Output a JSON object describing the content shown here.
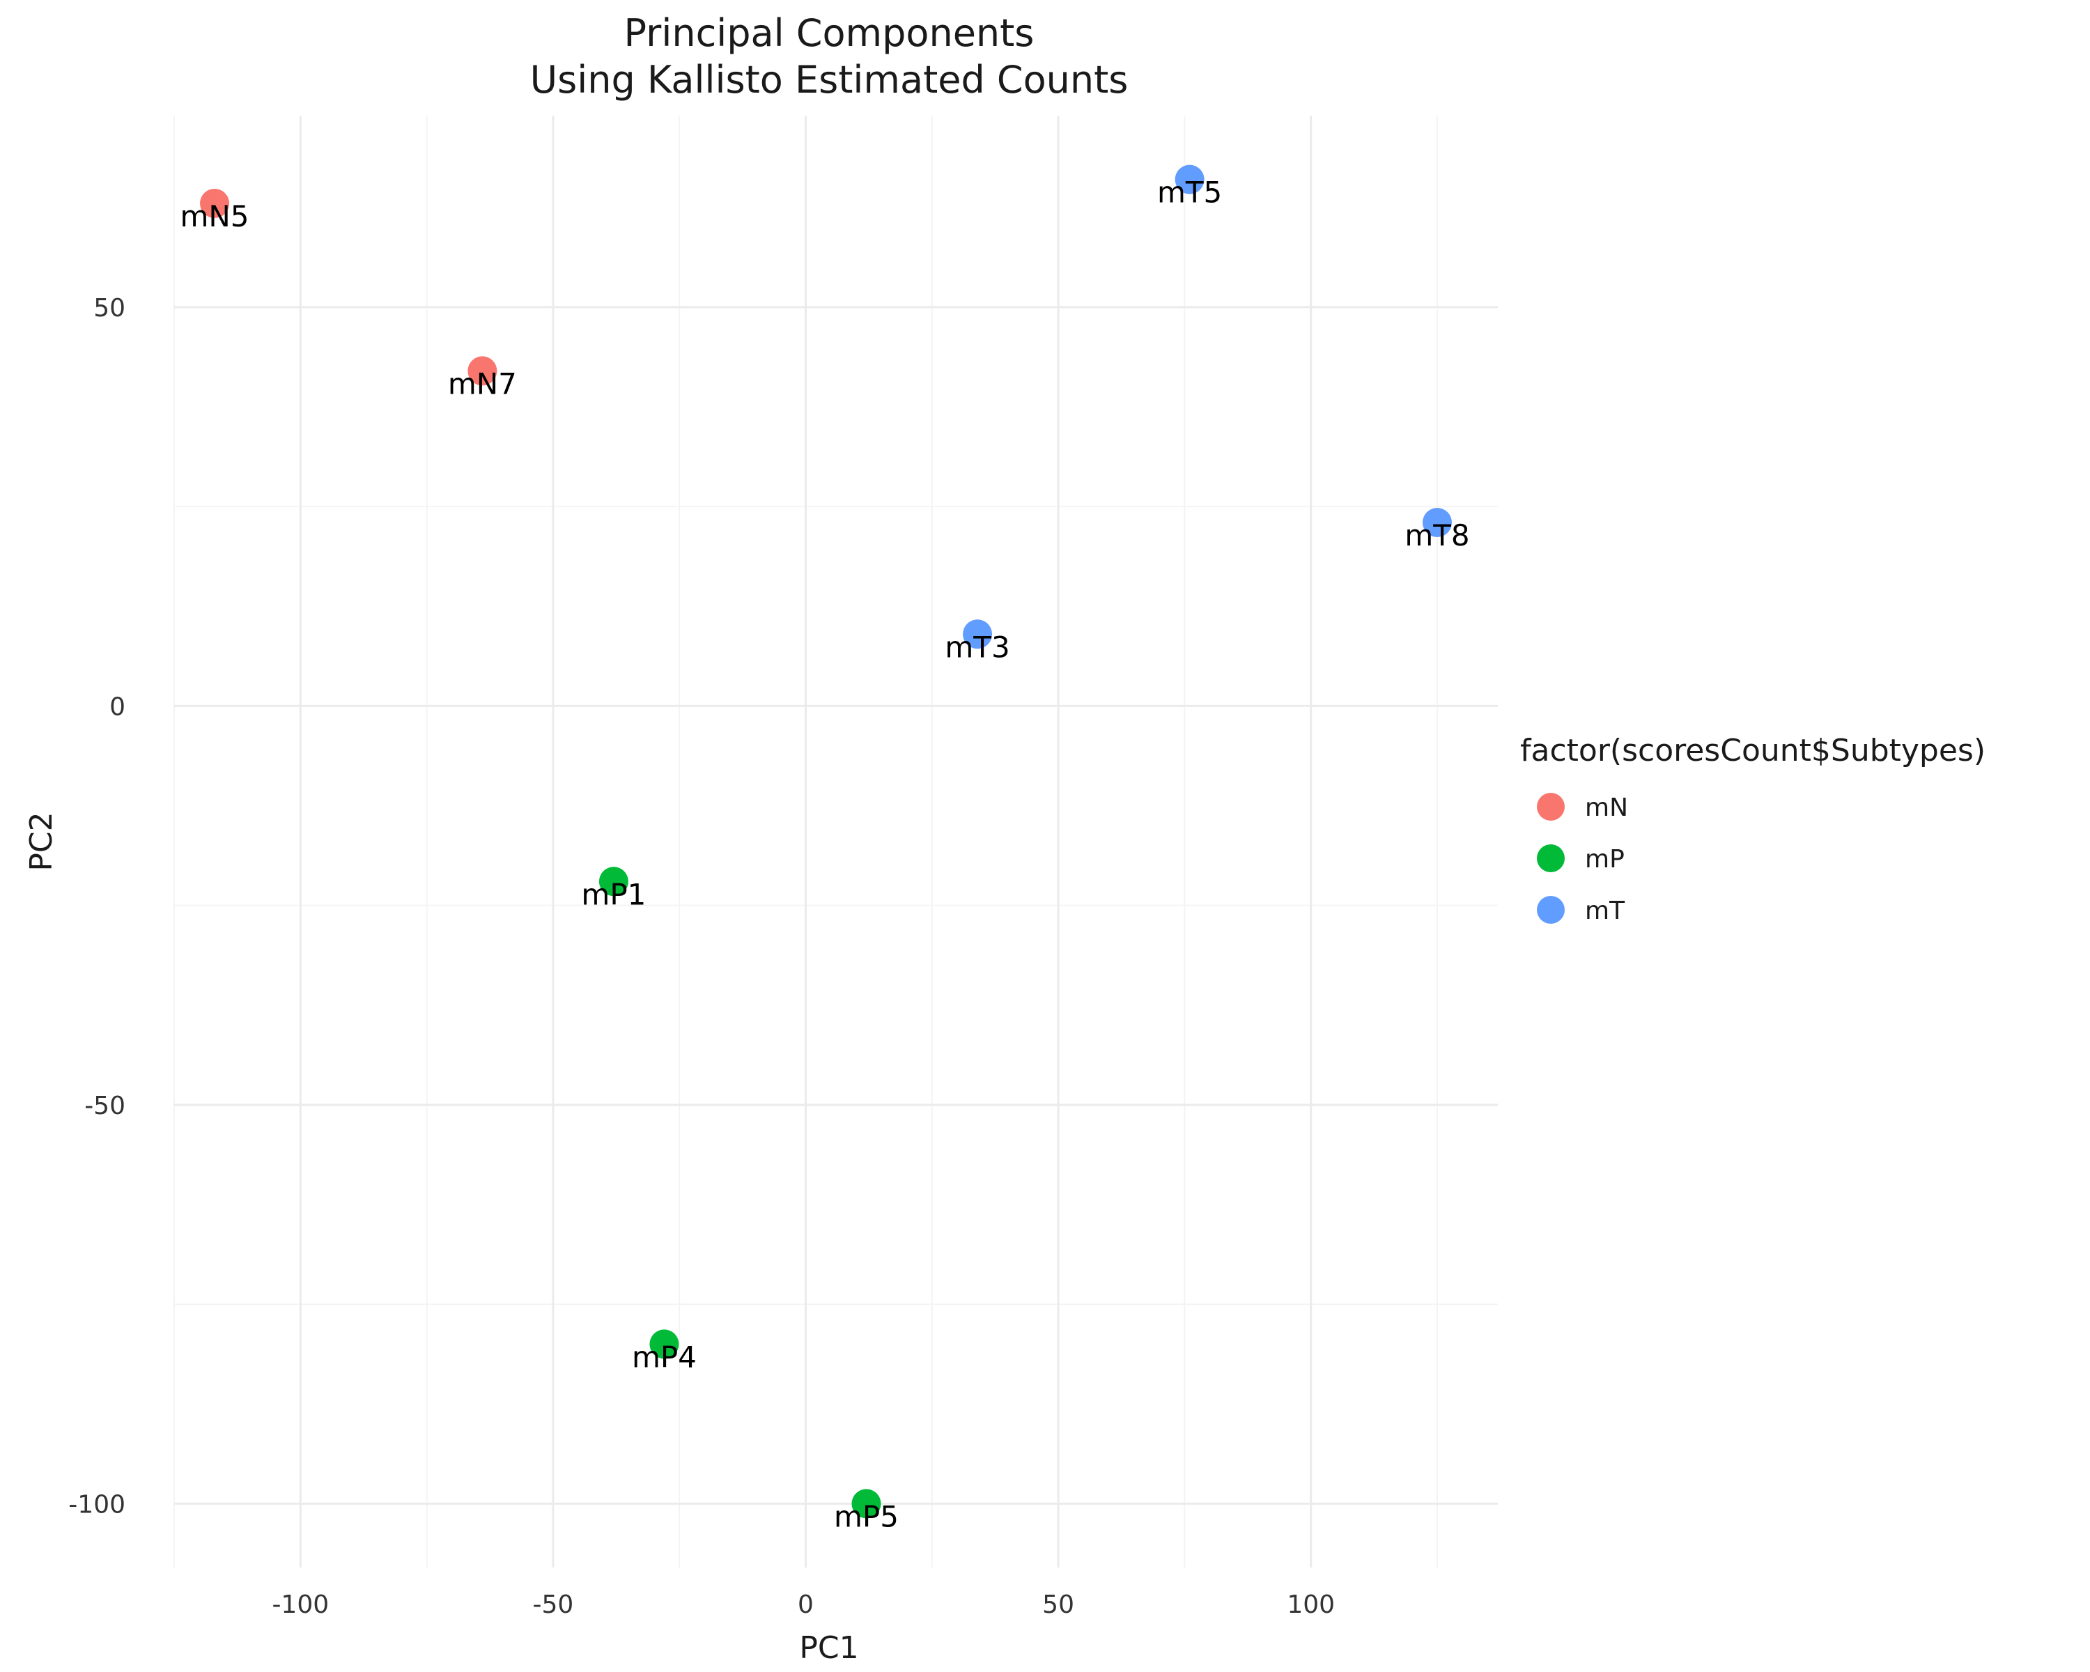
{
  "chart_data": {
    "type": "scatter",
    "title": "Principal Components",
    "subtitle": "Using Kallisto Estimated Counts",
    "xlabel": "PC1",
    "ylabel": "PC2",
    "xlim": [
      -125,
      137
    ],
    "ylim": [
      -108,
      74
    ],
    "x_ticks": [
      -100,
      -50,
      0,
      50,
      100
    ],
    "y_ticks": [
      -100,
      -50,
      0,
      50
    ],
    "grid": true,
    "legend": {
      "title": "factor(scoresCount$Subtypes)",
      "position": "right",
      "entries": [
        {
          "name": "mN",
          "color": "#F8766D"
        },
        {
          "name": "mP",
          "color": "#00BA38"
        },
        {
          "name": "mT",
          "color": "#619CFF"
        }
      ]
    },
    "points": [
      {
        "label": "mN5",
        "group": "mN",
        "x": -117,
        "y": 63
      },
      {
        "label": "mN7",
        "group": "mN",
        "x": -64,
        "y": 42
      },
      {
        "label": "mP1",
        "group": "mP",
        "x": -38,
        "y": -22
      },
      {
        "label": "mP4",
        "group": "mP",
        "x": -28,
        "y": -80
      },
      {
        "label": "mP5",
        "group": "mP",
        "x": 12,
        "y": -100
      },
      {
        "label": "mT3",
        "group": "mT",
        "x": 34,
        "y": 9
      },
      {
        "label": "mT5",
        "group": "mT",
        "x": 76,
        "y": 66
      },
      {
        "label": "mT8",
        "group": "mT",
        "x": 125,
        "y": 23
      }
    ]
  }
}
